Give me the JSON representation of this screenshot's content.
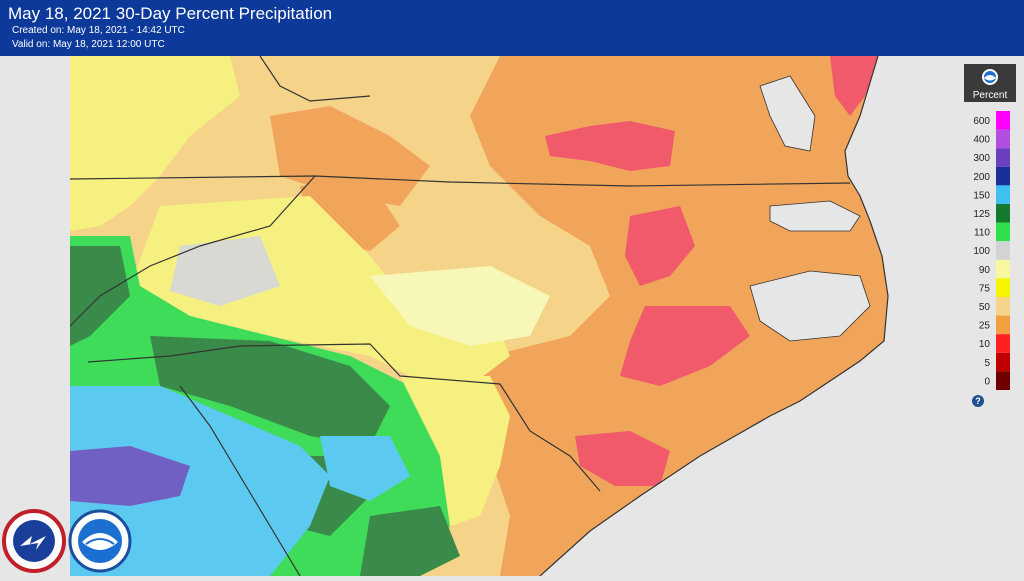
{
  "header": {
    "title": "May 18, 2021 30-Day Percent Precipitation",
    "created": "Created on: May 18, 2021 - 14:42 UTC",
    "valid": "Valid on: May 18, 2021 12:00 UTC",
    "background": "#0d3a9a"
  },
  "legend": {
    "title": "Percent",
    "icon": "noaa-logo-icon",
    "help_icon": "help-question-icon",
    "levels": [
      {
        "value": "600",
        "color": "#ff00ff"
      },
      {
        "value": "400",
        "color": "#b24fe0"
      },
      {
        "value": "300",
        "color": "#6a3fc2"
      },
      {
        "value": "200",
        "color": "#1a2f9c"
      },
      {
        "value": "150",
        "color": "#3ec0f0"
      },
      {
        "value": "125",
        "color": "#157a30"
      },
      {
        "value": "110",
        "color": "#2ee04a"
      },
      {
        "value": "100",
        "color": "#d3d3d3"
      },
      {
        "value": "90",
        "color": "#f7f7a0"
      },
      {
        "value": "75",
        "color": "#f5f500"
      },
      {
        "value": "50",
        "color": "#f5d48a"
      },
      {
        "value": "25",
        "color": "#f0a040"
      },
      {
        "value": "10",
        "color": "#ff2020"
      },
      {
        "value": "5",
        "color": "#c00000"
      },
      {
        "value": "0",
        "color": "#700000"
      }
    ]
  },
  "map": {
    "region": "North Carolina / South Carolina / Virginia",
    "ocean_color": "#e6e6e6"
  },
  "logos": {
    "nws": "national-weather-service-logo-icon",
    "noaa": "noaa-seal-icon"
  }
}
